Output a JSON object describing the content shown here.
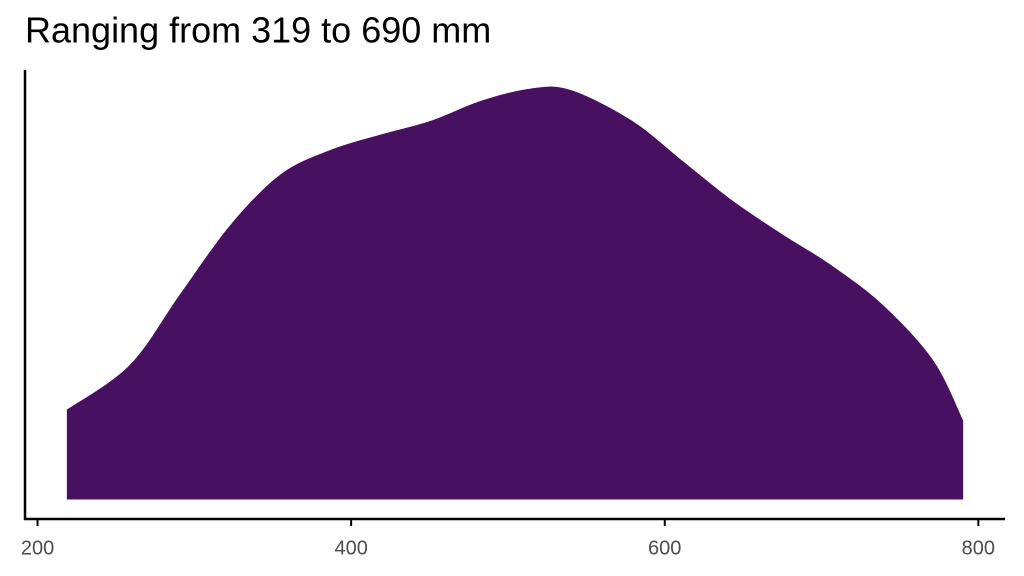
{
  "chart_data": {
    "type": "density",
    "title": "Ranging from 319 to 690 mm",
    "x": [
      219,
      259,
      291,
      323,
      355,
      387,
      419,
      451,
      483,
      515,
      540,
      579,
      611,
      643,
      675,
      706,
      739,
      771,
      790
    ],
    "values": [
      0.00058,
      0.00087,
      0.00133,
      0.00178,
      0.00211,
      0.00227,
      0.00237,
      0.00246,
      0.00259,
      0.00267,
      0.00266,
      0.00246,
      0.0022,
      0.00194,
      0.00172,
      0.00152,
      0.00126,
      0.0009,
      0.00051
    ],
    "color": "#481060",
    "xlim": [
      192,
      817
    ],
    "xticks": [
      200,
      400,
      600,
      800
    ],
    "ylim": [
      0,
      0.0028
    ]
  }
}
